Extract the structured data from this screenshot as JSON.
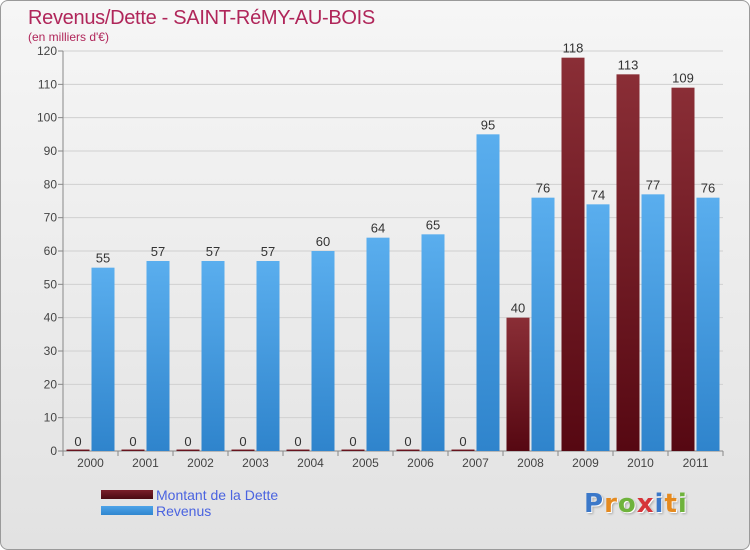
{
  "header": {
    "title": "Revenus/Dette - SAINT-RéMY-AU-BOIS",
    "subtitle": "(en milliers d'€)"
  },
  "chart_data": {
    "type": "bar",
    "title": "Revenus/Dette - SAINT-RéMY-AU-BOIS",
    "ylabel": "(en milliers d'€)",
    "categories": [
      "2000",
      "2001",
      "2002",
      "2003",
      "2004",
      "2005",
      "2006",
      "2007",
      "2008",
      "2009",
      "2010",
      "2011"
    ],
    "ylim": [
      0,
      120
    ],
    "yticks": [
      0,
      10,
      20,
      30,
      40,
      50,
      60,
      70,
      80,
      90,
      100,
      110,
      120
    ],
    "grid": true,
    "legend_position": "bottom-left",
    "series": [
      {
        "name": "Montant de la Dette",
        "color": "#7a1f2a",
        "values": [
          0,
          0,
          0,
          0,
          0,
          0,
          0,
          0,
          40,
          118,
          113,
          109
        ]
      },
      {
        "name": "Revenus",
        "color": "#4da3e8",
        "values": [
          55,
          57,
          57,
          57,
          60,
          64,
          65,
          95,
          76,
          74,
          77,
          76
        ]
      }
    ]
  },
  "legend": {
    "items": [
      {
        "label": "Montant de la Dette",
        "color": "#7a1f2a"
      },
      {
        "label": "Revenus",
        "color": "#4da3e8"
      }
    ]
  },
  "logo": {
    "letters": [
      "P",
      "r",
      "o",
      "x",
      "i",
      "t",
      "i"
    ],
    "colors": [
      "#3b78c9",
      "#e58a1f",
      "#6fb33c",
      "#d6343a",
      "#3b78c9",
      "#e58a1f",
      "#6fb33c"
    ]
  }
}
